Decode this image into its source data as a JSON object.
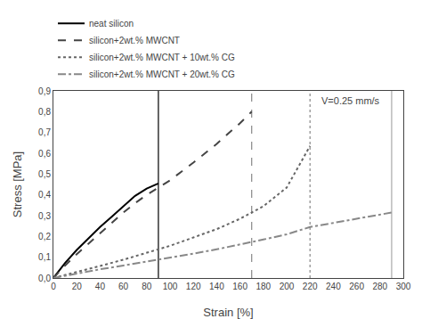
{
  "chart_data": {
    "type": "line",
    "xlabel": "Strain [%]",
    "ylabel": "Stress [MPa]",
    "xlim": [
      0,
      300
    ],
    "ylim": [
      0.0,
      0.9
    ],
    "xticks": [
      0,
      20,
      40,
      60,
      80,
      100,
      120,
      140,
      160,
      180,
      200,
      220,
      240,
      260,
      280,
      300
    ],
    "yticks": [
      {
        "value": 0.0,
        "label": "0,0"
      },
      {
        "value": 0.1,
        "label": "0,1"
      },
      {
        "value": 0.2,
        "label": "0,2"
      },
      {
        "value": 0.3,
        "label": "0,3"
      },
      {
        "value": 0.4,
        "label": "0,4"
      },
      {
        "value": 0.5,
        "label": "0,5"
      },
      {
        "value": 0.6,
        "label": "0,6"
      },
      {
        "value": 0.7,
        "label": "0,7"
      },
      {
        "value": 0.8,
        "label": "0,8"
      },
      {
        "value": 0.9,
        "label": "0,9"
      }
    ],
    "annotations": [
      "V=0.25 mm/s"
    ],
    "grid": false,
    "legend": "upper left",
    "series": [
      {
        "name": "neat silicon",
        "color": "#000000",
        "line_style": "solid",
        "x": [
          0,
          10,
          20,
          30,
          40,
          50,
          60,
          70,
          80,
          90
        ],
        "values": [
          0,
          0.072,
          0.135,
          0.19,
          0.245,
          0.295,
          0.345,
          0.395,
          0.43,
          0.455
        ]
      },
      {
        "name": "silicon+2wt.% MWCNT",
        "color": "#444444",
        "line_style": "dashed",
        "x": [
          0,
          10,
          20,
          30,
          40,
          50,
          60,
          70,
          80,
          90,
          100,
          120,
          140,
          160,
          170
        ],
        "values": [
          0,
          0.06,
          0.115,
          0.165,
          0.215,
          0.265,
          0.315,
          0.36,
          0.4,
          0.435,
          0.47,
          0.555,
          0.645,
          0.745,
          0.8
        ]
      },
      {
        "name": "silicon+2wt.% MWCNT + 10wt.% CG",
        "color": "#666666",
        "line_style": "dotted",
        "x": [
          0,
          20,
          40,
          60,
          80,
          100,
          120,
          140,
          160,
          180,
          200,
          220
        ],
        "values": [
          0,
          0.028,
          0.058,
          0.088,
          0.12,
          0.155,
          0.195,
          0.235,
          0.285,
          0.345,
          0.435,
          0.635
        ]
      },
      {
        "name": "silicon+2wt.% MWCNT + 20wt.% CG",
        "color": "#888888",
        "line_style": "dashdot",
        "x": [
          0,
          20,
          40,
          60,
          80,
          100,
          120,
          140,
          160,
          180,
          200,
          220,
          240,
          260,
          280,
          290
        ],
        "values": [
          0,
          0.022,
          0.042,
          0.06,
          0.078,
          0.097,
          0.117,
          0.138,
          0.16,
          0.185,
          0.21,
          0.245,
          0.265,
          0.285,
          0.308,
          0.315
        ]
      }
    ],
    "vlines": [
      {
        "x": 90,
        "color": "#000000",
        "line_style": "solid"
      },
      {
        "x": 170,
        "color": "#888888",
        "line_style": "dashed"
      },
      {
        "x": 220,
        "color": "#888888",
        "line_style": "dotted"
      },
      {
        "x": 290,
        "color": "#aaaaaa",
        "line_style": "solid"
      }
    ]
  }
}
